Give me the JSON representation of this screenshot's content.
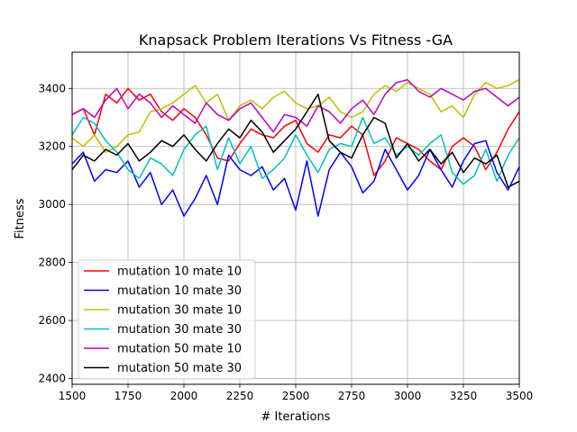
{
  "chart_data": {
    "type": "line",
    "title": "Knapsack Problem Iterations Vs Fitness -GA",
    "xlabel": "# Iterations",
    "ylabel": "Fitness",
    "xlim": [
      1500,
      3500
    ],
    "ylim": [
      2380,
      3525
    ],
    "grid": true,
    "legend_position": "lower-left",
    "x_ticks": [
      1500,
      1750,
      2000,
      2250,
      2500,
      2750,
      3000,
      3250,
      3500
    ],
    "y_ticks": [
      2400,
      2600,
      2800,
      3000,
      3200,
      3400
    ],
    "x_tick_labels": [
      "1500",
      "1750",
      "2000",
      "2250",
      "2500",
      "2750",
      "3000",
      "3250",
      "3500"
    ],
    "y_tick_labels": [
      "2400",
      "2600",
      "2800",
      "3000",
      "3200",
      "3400"
    ],
    "x": [
      1500,
      1550,
      1600,
      1650,
      1700,
      1750,
      1800,
      1850,
      1900,
      1950,
      2000,
      2050,
      2100,
      2150,
      2200,
      2250,
      2300,
      2350,
      2400,
      2450,
      2500,
      2550,
      2600,
      2650,
      2700,
      2750,
      2800,
      2850,
      2900,
      2950,
      3000,
      3050,
      3100,
      3150,
      3200,
      3250,
      3300,
      3350,
      3400,
      3450,
      3500
    ],
    "series": [
      {
        "name": "mutation 10 mate 10",
        "color": "#ff0000",
        "values": [
          3310,
          3330,
          3240,
          3380,
          3350,
          3400,
          3360,
          3380,
          3320,
          3290,
          3330,
          3300,
          3240,
          3160,
          3150,
          3210,
          3260,
          3240,
          3230,
          3270,
          3290,
          3210,
          3180,
          3240,
          3230,
          3270,
          3240,
          3100,
          3150,
          3230,
          3210,
          3190,
          3150,
          3120,
          3200,
          3230,
          3200,
          3120,
          3180,
          3260,
          3320
        ]
      },
      {
        "name": "mutation 10 mate 30",
        "color": "#0000ff",
        "values": [
          3140,
          3180,
          3080,
          3120,
          3110,
          3150,
          3060,
          3110,
          3000,
          3050,
          2960,
          3020,
          3100,
          3000,
          3170,
          3120,
          3100,
          3130,
          3050,
          3090,
          2980,
          3150,
          2960,
          3120,
          3180,
          3130,
          3040,
          3080,
          3190,
          3120,
          3050,
          3100,
          3190,
          3120,
          3060,
          3150,
          3210,
          3220,
          3110,
          3050,
          3130
        ]
      },
      {
        "name": "mutation 30 mate 10",
        "color": "#bfbf00",
        "values": [
          3230,
          3200,
          3240,
          3180,
          3200,
          3240,
          3250,
          3320,
          3330,
          3350,
          3380,
          3410,
          3350,
          3380,
          3290,
          3340,
          3360,
          3330,
          3370,
          3390,
          3350,
          3330,
          3340,
          3370,
          3320,
          3300,
          3320,
          3380,
          3410,
          3390,
          3420,
          3400,
          3380,
          3320,
          3340,
          3300,
          3380,
          3420,
          3400,
          3410,
          3430
        ]
      },
      {
        "name": "mutation 30 mate 30",
        "color": "#00bfbf",
        "values": [
          3240,
          3300,
          3280,
          3220,
          3180,
          3120,
          3090,
          3160,
          3140,
          3100,
          3190,
          3240,
          3270,
          3120,
          3230,
          3140,
          3200,
          3090,
          3120,
          3160,
          3240,
          3170,
          3110,
          3190,
          3210,
          3200,
          3300,
          3210,
          3230,
          3170,
          3200,
          3170,
          3210,
          3240,
          3110,
          3070,
          3100,
          3190,
          3080,
          3170,
          3230
        ]
      },
      {
        "name": "mutation 50 mate 10",
        "color": "#bf00bf",
        "values": [
          3310,
          3330,
          3300,
          3360,
          3400,
          3330,
          3380,
          3350,
          3300,
          3340,
          3310,
          3280,
          3350,
          3310,
          3290,
          3330,
          3350,
          3300,
          3250,
          3310,
          3300,
          3270,
          3340,
          3320,
          3280,
          3330,
          3360,
          3310,
          3380,
          3420,
          3430,
          3390,
          3370,
          3400,
          3380,
          3360,
          3390,
          3400,
          3370,
          3340,
          3370
        ]
      },
      {
        "name": "mutation 50 mate 30",
        "color": "#000000",
        "values": [
          3120,
          3170,
          3150,
          3190,
          3170,
          3210,
          3150,
          3180,
          3220,
          3200,
          3240,
          3190,
          3150,
          3210,
          3260,
          3230,
          3290,
          3250,
          3180,
          3220,
          3260,
          3320,
          3380,
          3220,
          3180,
          3160,
          3240,
          3300,
          3280,
          3160,
          3210,
          3150,
          3190,
          3140,
          3180,
          3110,
          3160,
          3140,
          3170,
          3060,
          3080
        ]
      }
    ]
  }
}
